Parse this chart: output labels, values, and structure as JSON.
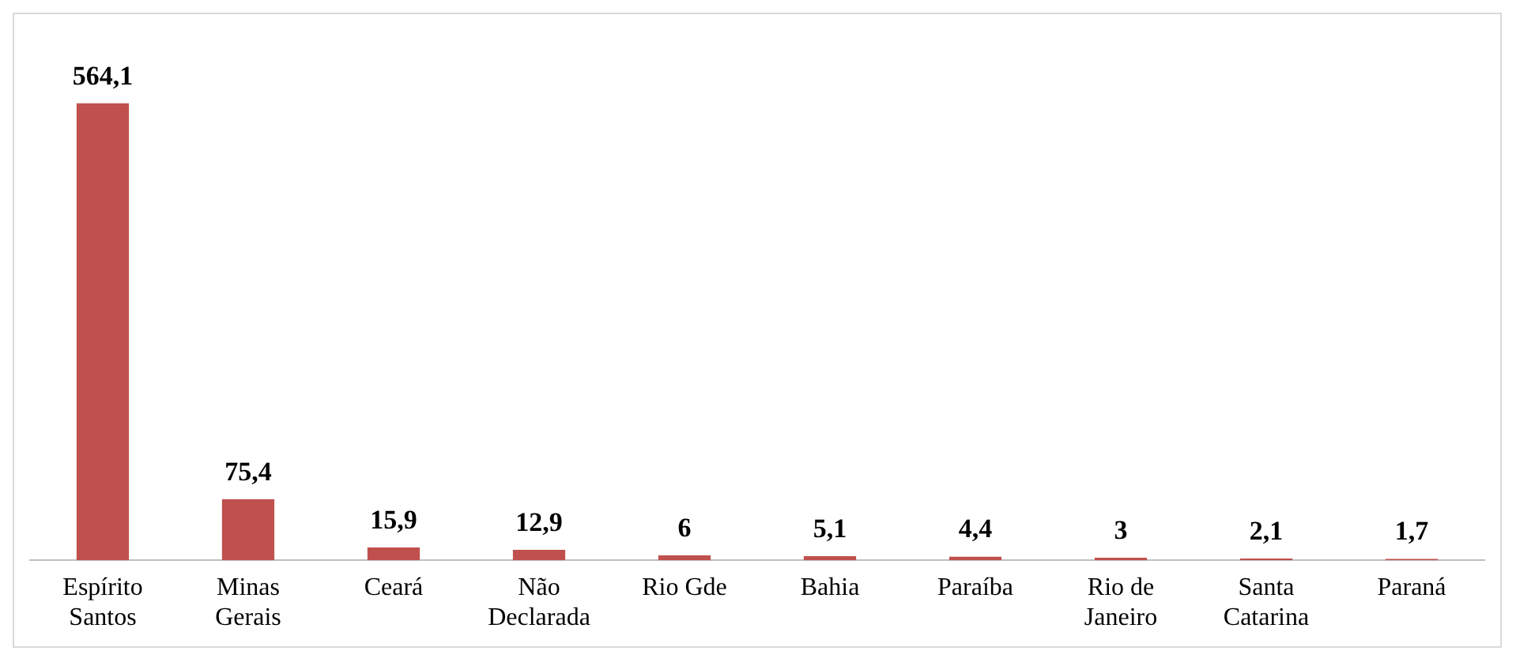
{
  "chart_data": {
    "type": "bar",
    "categories": [
      "Espírito\nSantos",
      "Minas\nGerais",
      "Ceará",
      "Não\nDeclarada",
      "Rio Gde",
      "Bahia",
      "Paraíba",
      "Rio de\nJaneiro",
      "Santa\nCatarina",
      "Paraná"
    ],
    "values": [
      564.1,
      75.4,
      15.9,
      12.9,
      6,
      5.1,
      4.4,
      3,
      2.1,
      1.7
    ],
    "value_labels": [
      "564,1",
      "75,4",
      "15,9",
      "12,9",
      "6",
      "5,1",
      "4,4",
      "3",
      "2,1",
      "1,7"
    ],
    "color": "#c0504d",
    "grid": false,
    "legend": false
  }
}
